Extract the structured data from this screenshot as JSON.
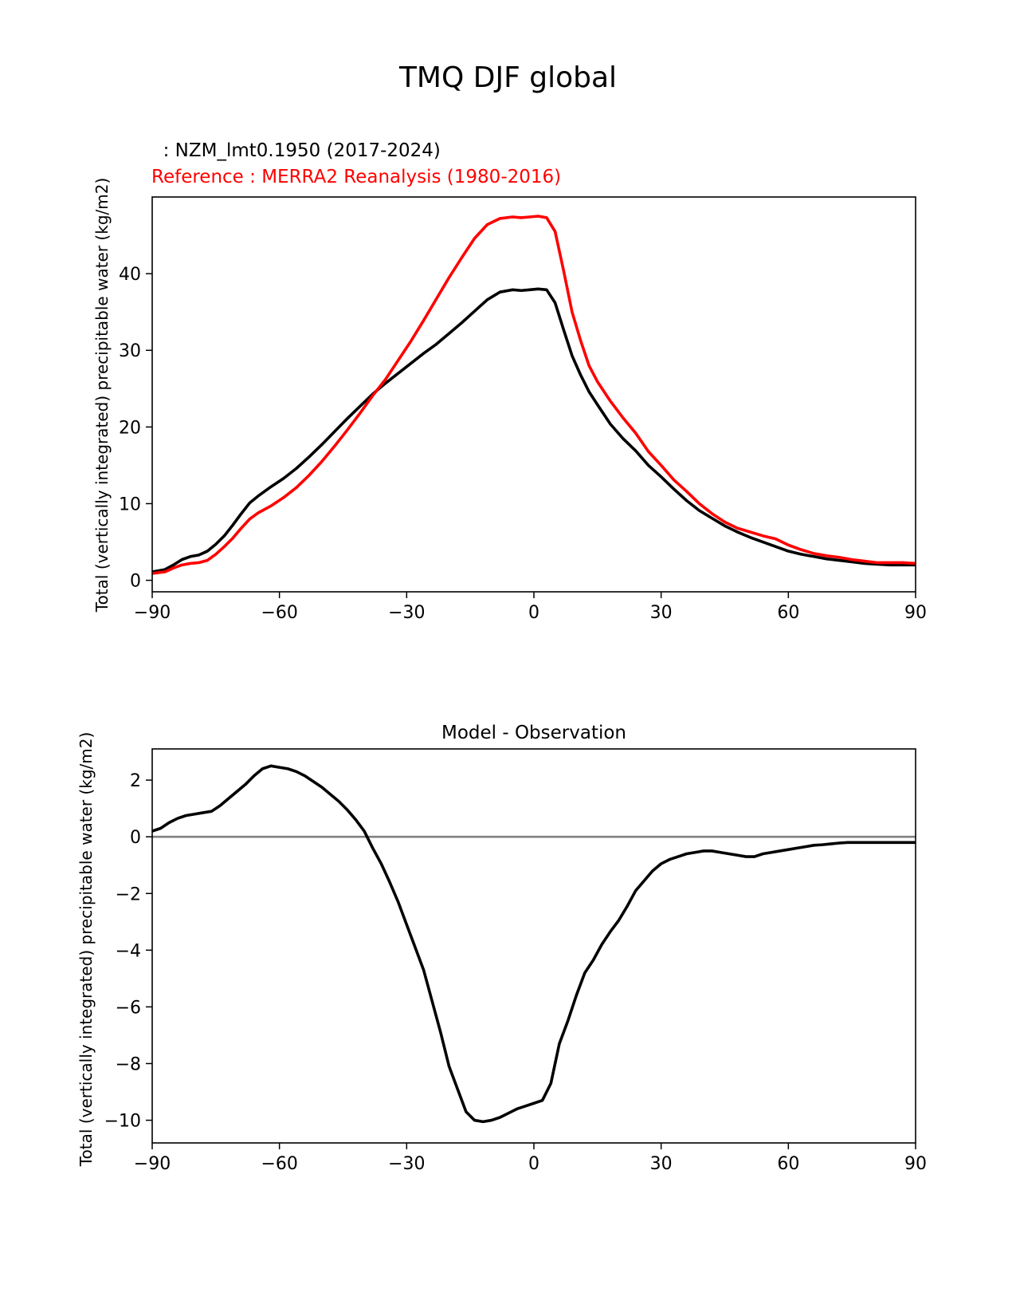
{
  "figure": {
    "suptitle": "TMQ DJF global"
  },
  "chart_data": [
    {
      "type": "line",
      "test_label": "  : NZM_lmt0.1950 (2017-2024)",
      "ref_label": "Reference : MERRA2 Reanalysis (1980-2016)",
      "title": "",
      "xlabel": "",
      "ylabel": "Total (vertically integrated) precipitable water (kg/m2)",
      "xlim": [
        -90,
        90
      ],
      "ylim": [
        -1.5,
        50
      ],
      "xticks": [
        -90,
        -60,
        -30,
        0,
        30,
        60,
        90
      ],
      "xtick_labels": [
        "−90",
        "−60",
        "−30",
        "0",
        "30",
        "60",
        "90"
      ],
      "yticks": [
        0,
        10,
        20,
        30,
        40
      ],
      "ytick_labels": [
        "0",
        "10",
        "20",
        "30",
        "40"
      ],
      "series": [
        {
          "name": "NZM_lmt0.1950 (2017-2024)",
          "color": "#000000",
          "x": [
            -90,
            -87,
            -85,
            -83,
            -81,
            -79,
            -77,
            -75,
            -73,
            -71,
            -69,
            -67,
            -65,
            -62,
            -59,
            -56,
            -53,
            -50,
            -47,
            -44,
            -41,
            -38,
            -35,
            -32,
            -29,
            -26,
            -23,
            -20,
            -17,
            -14,
            -11,
            -8,
            -5,
            -3,
            -1,
            1,
            3,
            5,
            7,
            9,
            11,
            13,
            15,
            18,
            21,
            24,
            27,
            30,
            33,
            36,
            39,
            42,
            45,
            48,
            51,
            54,
            57,
            60,
            63,
            66,
            69,
            72,
            75,
            78,
            81,
            84,
            87,
            90
          ],
          "values": [
            1.1,
            1.4,
            2.0,
            2.7,
            3.1,
            3.3,
            3.8,
            4.7,
            5.8,
            7.2,
            8.7,
            10.1,
            11.0,
            12.2,
            13.3,
            14.6,
            16.1,
            17.7,
            19.4,
            21.1,
            22.7,
            24.3,
            25.7,
            27.0,
            28.3,
            29.6,
            30.8,
            32.2,
            33.6,
            35.1,
            36.6,
            37.6,
            37.9,
            37.8,
            37.9,
            38.0,
            37.9,
            36.2,
            32.7,
            29.3,
            26.8,
            24.6,
            22.9,
            20.4,
            18.5,
            16.9,
            15.0,
            13.5,
            11.9,
            10.4,
            9.1,
            8.1,
            7.1,
            6.3,
            5.6,
            5.0,
            4.4,
            3.8,
            3.4,
            3.1,
            2.8,
            2.6,
            2.4,
            2.2,
            2.1,
            2.0,
            2.0,
            2.0
          ]
        },
        {
          "name": "MERRA2 Reanalysis (1980-2016)",
          "color": "#ff0000",
          "x": [
            -90,
            -87,
            -85,
            -83,
            -81,
            -79,
            -77,
            -75,
            -73,
            -71,
            -69,
            -67,
            -65,
            -62,
            -59,
            -56,
            -53,
            -50,
            -47,
            -44,
            -41,
            -38,
            -35,
            -32,
            -29,
            -26,
            -23,
            -20,
            -17,
            -14,
            -11,
            -8,
            -5,
            -3,
            -1,
            1,
            3,
            5,
            7,
            9,
            11,
            13,
            15,
            18,
            21,
            24,
            27,
            30,
            33,
            36,
            39,
            42,
            45,
            48,
            51,
            54,
            57,
            60,
            63,
            66,
            69,
            72,
            75,
            78,
            81,
            84,
            87,
            90
          ],
          "values": [
            0.9,
            1.1,
            1.6,
            2.0,
            2.2,
            2.3,
            2.6,
            3.4,
            4.4,
            5.5,
            6.8,
            8.0,
            8.8,
            9.7,
            10.8,
            12.1,
            13.7,
            15.5,
            17.5,
            19.6,
            21.8,
            24.1,
            26.2,
            28.7,
            31.2,
            33.9,
            36.7,
            39.5,
            42.1,
            44.6,
            46.4,
            47.2,
            47.4,
            47.3,
            47.4,
            47.5,
            47.3,
            45.5,
            40.4,
            35.0,
            31.3,
            28.0,
            25.9,
            23.4,
            21.2,
            19.2,
            16.8,
            15.0,
            13.1,
            11.6,
            10.0,
            8.7,
            7.6,
            6.8,
            6.3,
            5.8,
            5.4,
            4.6,
            4.0,
            3.5,
            3.2,
            3.0,
            2.7,
            2.5,
            2.3,
            2.3,
            2.3,
            2.2
          ]
        }
      ]
    },
    {
      "type": "line",
      "title": "Model - Observation",
      "xlabel": "",
      "ylabel": "Total (vertically integrated) precipitable water (kg/m2)",
      "xlim": [
        -90,
        90
      ],
      "ylim": [
        -10.8,
        3.1
      ],
      "xticks": [
        -90,
        -60,
        -30,
        0,
        30,
        60,
        90
      ],
      "xtick_labels": [
        "−90",
        "−60",
        "−30",
        "0",
        "30",
        "60",
        "90"
      ],
      "yticks": [
        2,
        0,
        -2,
        -4,
        -6,
        -8,
        -10
      ],
      "ytick_labels": [
        "2",
        "0",
        "−2",
        "−4",
        "−6",
        "−8",
        "−10"
      ],
      "zero_line_color": "#808080",
      "series": [
        {
          "name": "Model - Observation",
          "color": "#000000",
          "x": [
            -90,
            -88,
            -86,
            -84,
            -82,
            -80,
            -78,
            -76,
            -74,
            -72,
            -70,
            -68,
            -66,
            -64,
            -62,
            -60,
            -58,
            -56,
            -54,
            -52,
            -50,
            -48,
            -46,
            -44,
            -42,
            -40,
            -38,
            -36,
            -34,
            -32,
            -30,
            -28,
            -26,
            -24,
            -22,
            -20,
            -18,
            -16,
            -14,
            -12,
            -10,
            -8,
            -6,
            -4,
            -2,
            0,
            2,
            4,
            6,
            8,
            10,
            12,
            14,
            16,
            18,
            20,
            22,
            24,
            26,
            28,
            30,
            32,
            34,
            36,
            38,
            40,
            42,
            44,
            46,
            48,
            50,
            52,
            54,
            56,
            58,
            60,
            62,
            64,
            66,
            68,
            70,
            72,
            74,
            76,
            78,
            80,
            82,
            84,
            86,
            88,
            90
          ],
          "values": [
            0.2,
            0.3,
            0.5,
            0.65,
            0.75,
            0.8,
            0.85,
            0.9,
            1.1,
            1.35,
            1.6,
            1.85,
            2.15,
            2.4,
            2.5,
            2.45,
            2.4,
            2.3,
            2.15,
            1.95,
            1.75,
            1.5,
            1.25,
            0.95,
            0.6,
            0.2,
            -0.4,
            -0.95,
            -1.6,
            -2.3,
            -3.1,
            -3.9,
            -4.7,
            -5.8,
            -6.9,
            -8.1,
            -8.9,
            -9.7,
            -10.0,
            -10.05,
            -10.0,
            -9.9,
            -9.75,
            -9.6,
            -9.5,
            -9.4,
            -9.3,
            -8.7,
            -7.3,
            -6.5,
            -5.6,
            -4.8,
            -4.35,
            -3.8,
            -3.35,
            -2.95,
            -2.45,
            -1.9,
            -1.55,
            -1.2,
            -0.95,
            -0.8,
            -0.7,
            -0.6,
            -0.55,
            -0.5,
            -0.5,
            -0.55,
            -0.6,
            -0.65,
            -0.7,
            -0.7,
            -0.6,
            -0.55,
            -0.5,
            -0.45,
            -0.4,
            -0.35,
            -0.3,
            -0.28,
            -0.25,
            -0.22,
            -0.2,
            -0.2,
            -0.2,
            -0.2,
            -0.2,
            -0.2,
            -0.2,
            -0.2,
            -0.2
          ]
        }
      ]
    }
  ]
}
